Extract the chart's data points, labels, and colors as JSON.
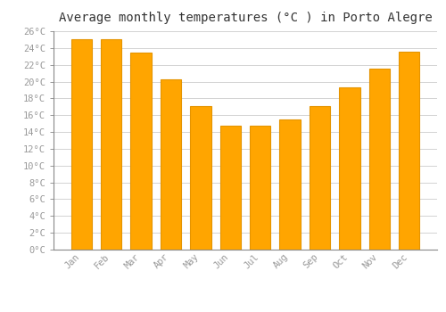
{
  "title": "Average monthly temperatures (°C ) in Porto Alegre",
  "months": [
    "Jan",
    "Feb",
    "Mar",
    "Apr",
    "May",
    "Jun",
    "Jul",
    "Aug",
    "Sep",
    "Oct",
    "Nov",
    "Dec"
  ],
  "temperatures": [
    25.0,
    25.0,
    23.5,
    20.3,
    17.1,
    14.8,
    14.7,
    15.5,
    17.1,
    19.3,
    21.5,
    23.6
  ],
  "bar_color": "#FFA500",
  "bar_color_top": "#FFB700",
  "bar_edge_color": "#E59400",
  "ylim": [
    0,
    26
  ],
  "yticks": [
    0,
    2,
    4,
    6,
    8,
    10,
    12,
    14,
    16,
    18,
    20,
    22,
    24,
    26
  ],
  "background_color": "#FFFFFF",
  "grid_color": "#CCCCCC",
  "title_fontsize": 10,
  "tick_fontsize": 7.5,
  "tick_color": "#999999",
  "spine_color": "#888888",
  "title_color": "#333333"
}
